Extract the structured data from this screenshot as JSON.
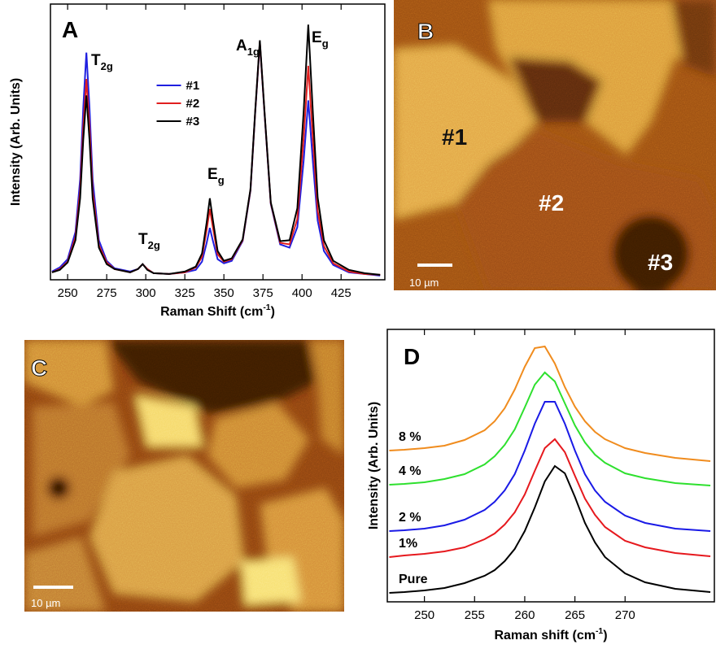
{
  "chart_data": [
    {
      "type": "line",
      "panel_label": "A",
      "y_label": "Intensity (Arb. Units)",
      "x_label": {
        "text": "Raman Shift (cm",
        "sup": "-1",
        "end": ")"
      },
      "xlim": [
        239,
        453
      ],
      "ylim": [
        0,
        3.35
      ],
      "xticks": [
        250,
        275,
        300,
        325,
        350,
        375,
        400,
        425
      ],
      "legend": "top-center",
      "annotations": [
        {
          "text": "T",
          "sub": "2g"
        },
        {
          "text": "T",
          "sub": "2g"
        },
        {
          "text": "E",
          "sub": "g"
        },
        {
          "text": "A",
          "sub": "1g"
        },
        {
          "text": "E",
          "sub": "g"
        }
      ],
      "x": [
        240,
        245,
        250,
        255,
        258,
        260,
        262,
        264,
        266,
        270,
        275,
        280,
        290,
        295,
        298,
        301,
        305,
        315,
        325,
        332,
        336,
        339,
        341,
        343,
        346,
        350,
        355,
        362,
        367,
        370,
        373,
        376,
        380,
        386,
        392,
        397,
        401,
        404,
        407,
        410,
        414,
        420,
        430,
        440,
        450
      ],
      "series": [
        {
          "name": "#1",
          "color": "#1f1fe0",
          "values": [
            0.1,
            0.15,
            0.25,
            0.58,
            1.22,
            2.09,
            2.76,
            2.09,
            1.22,
            0.48,
            0.23,
            0.14,
            0.1,
            0.13,
            0.19,
            0.13,
            0.08,
            0.07,
            0.09,
            0.12,
            0.22,
            0.45,
            0.63,
            0.47,
            0.25,
            0.2,
            0.23,
            0.47,
            1.08,
            2.02,
            2.88,
            2.02,
            0.92,
            0.43,
            0.39,
            0.64,
            1.44,
            2.18,
            1.42,
            0.72,
            0.35,
            0.18,
            0.09,
            0.07,
            0.05
          ]
        },
        {
          "name": "#2",
          "color": "#e01f1f",
          "values": [
            0.09,
            0.13,
            0.22,
            0.52,
            1.08,
            1.85,
            2.44,
            1.85,
            1.08,
            0.42,
            0.21,
            0.13,
            0.09,
            0.13,
            0.19,
            0.13,
            0.08,
            0.07,
            0.09,
            0.15,
            0.28,
            0.61,
            0.86,
            0.63,
            0.31,
            0.22,
            0.25,
            0.48,
            1.09,
            2.03,
            2.89,
            2.03,
            0.93,
            0.45,
            0.43,
            0.74,
            1.71,
            2.6,
            1.69,
            0.84,
            0.41,
            0.2,
            0.1,
            0.07,
            0.06
          ]
        },
        {
          "name": "#3",
          "color": "#000000",
          "values": [
            0.09,
            0.12,
            0.21,
            0.48,
            0.99,
            1.7,
            2.24,
            1.7,
            0.99,
            0.39,
            0.19,
            0.13,
            0.09,
            0.13,
            0.19,
            0.12,
            0.08,
            0.07,
            0.1,
            0.16,
            0.32,
            0.7,
            0.99,
            0.72,
            0.35,
            0.23,
            0.26,
            0.49,
            1.1,
            2.04,
            2.91,
            2.04,
            0.94,
            0.47,
            0.48,
            0.87,
            2.03,
            3.1,
            2.01,
            1.0,
            0.48,
            0.23,
            0.12,
            0.08,
            0.06
          ]
        }
      ]
    },
    {
      "type": "line",
      "panel_label": "D",
      "y_label": "Intensity (Arb. Units)",
      "x_label": {
        "text": "Raman shift (cm",
        "sup": "-1",
        "end": ")"
      },
      "xlim": [
        246.3,
        278.9
      ],
      "ylim": [
        0,
        3.35
      ],
      "xticks": [
        250,
        255,
        260,
        265,
        270
      ],
      "legend": "inline-left",
      "x": [
        246.5,
        248,
        250,
        252,
        254,
        256,
        257,
        258,
        259,
        260,
        261,
        262,
        263,
        264,
        265,
        266,
        267,
        268,
        270,
        272,
        275,
        278.5
      ],
      "series": [
        {
          "name": "8 %",
          "color": "#f08c1e",
          "values": [
            1.86,
            1.87,
            1.89,
            1.92,
            1.99,
            2.11,
            2.22,
            2.38,
            2.61,
            2.89,
            3.12,
            3.14,
            2.93,
            2.64,
            2.4,
            2.22,
            2.09,
            2.0,
            1.89,
            1.83,
            1.77,
            1.73
          ]
        },
        {
          "name": "4 %",
          "color": "#2ee02e",
          "values": [
            1.44,
            1.45,
            1.47,
            1.51,
            1.57,
            1.69,
            1.79,
            1.93,
            2.12,
            2.39,
            2.67,
            2.82,
            2.71,
            2.44,
            2.17,
            1.96,
            1.81,
            1.71,
            1.58,
            1.52,
            1.46,
            1.43
          ]
        },
        {
          "name": "2 %",
          "color": "#1a1ae6",
          "values": [
            0.87,
            0.88,
            0.9,
            0.94,
            1.01,
            1.13,
            1.23,
            1.37,
            1.57,
            1.86,
            2.19,
            2.46,
            2.46,
            2.19,
            1.86,
            1.57,
            1.37,
            1.23,
            1.06,
            0.97,
            0.9,
            0.87
          ]
        },
        {
          "name": "1%",
          "color": "#e6191e",
          "values": [
            0.55,
            0.57,
            0.59,
            0.62,
            0.67,
            0.77,
            0.84,
            0.95,
            1.1,
            1.32,
            1.61,
            1.89,
            2.0,
            1.84,
            1.55,
            1.27,
            1.07,
            0.92,
            0.75,
            0.67,
            0.6,
            0.56
          ]
        },
        {
          "name": "Pure",
          "color": "#000000",
          "values": [
            0.11,
            0.12,
            0.14,
            0.17,
            0.23,
            0.32,
            0.39,
            0.5,
            0.65,
            0.87,
            1.16,
            1.48,
            1.67,
            1.58,
            1.29,
            0.97,
            0.73,
            0.55,
            0.35,
            0.24,
            0.16,
            0.12
          ]
        }
      ]
    }
  ],
  "images": [
    {
      "label": "B",
      "annotations": [
        "#1",
        "#2",
        "#3"
      ],
      "scale_bar": "10 µm"
    },
    {
      "label": "C",
      "scale_bar": "10 µm"
    }
  ]
}
